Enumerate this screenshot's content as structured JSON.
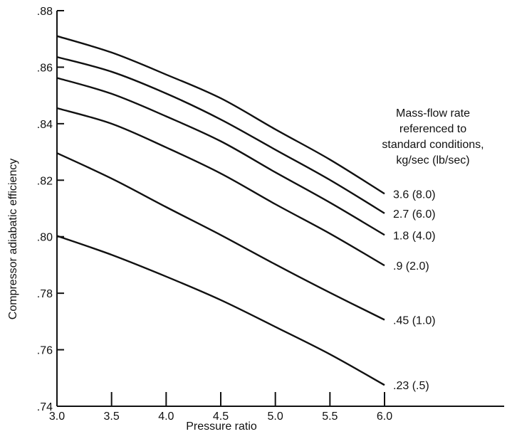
{
  "chart_data": {
    "type": "line",
    "title": "",
    "xlabel": "Pressure ratio",
    "ylabel": "Compressor adiabatic efficiency",
    "xlim": [
      3.0,
      6.0
    ],
    "ylim": [
      0.74,
      0.88
    ],
    "xticks": [
      {
        "value": 3.0,
        "label": "3.0"
      },
      {
        "value": 3.5,
        "label": "3.5"
      },
      {
        "value": 4.0,
        "label": "4.0"
      },
      {
        "value": 4.5,
        "label": "4.5"
      },
      {
        "value": 5.0,
        "label": "5.0"
      },
      {
        "value": 5.5,
        "label": "5.5"
      },
      {
        "value": 6.0,
        "label": "6.0"
      }
    ],
    "yticks": [
      {
        "value": 0.74,
        "label": ".74"
      },
      {
        "value": 0.76,
        "label": ".76"
      },
      {
        "value": 0.78,
        "label": ".78"
      },
      {
        "value": 0.8,
        "label": ".80"
      },
      {
        "value": 0.82,
        "label": ".82"
      },
      {
        "value": 0.84,
        "label": ".84"
      },
      {
        "value": 0.86,
        "label": ".86"
      },
      {
        "value": 0.88,
        "label": ".88"
      }
    ],
    "legend_title": [
      "Mass-flow rate",
      "referenced to",
      "standard conditions,",
      "kg/sec (lb/sec)"
    ],
    "grid": false,
    "series": [
      {
        "label": "3.6 (8.0)",
        "x": [
          3.0,
          3.5,
          4.0,
          4.5,
          5.0,
          5.5,
          6.0
        ],
        "y": [
          0.871,
          0.8652,
          0.8574,
          0.849,
          0.838,
          0.8273,
          0.8152
        ]
      },
      {
        "label": "2.7 (6.0)",
        "x": [
          3.0,
          3.5,
          4.0,
          4.5,
          5.0,
          5.5,
          6.0
        ],
        "y": [
          0.8636,
          0.8584,
          0.8507,
          0.8415,
          0.8308,
          0.8201,
          0.8083
        ]
      },
      {
        "label": "1.8 (4.0)",
        "x": [
          3.0,
          3.5,
          4.0,
          4.5,
          5.0,
          5.5,
          6.0
        ],
        "y": [
          0.8562,
          0.8506,
          0.8426,
          0.8338,
          0.8228,
          0.8121,
          0.8006
        ]
      },
      {
        "label": ".9 (2.0)",
        "x": [
          3.0,
          3.5,
          4.0,
          4.5,
          5.0,
          5.5,
          6.0
        ],
        "y": [
          0.8455,
          0.84,
          0.8316,
          0.8224,
          0.8115,
          0.8011,
          0.7898
        ]
      },
      {
        "label": ".45 (1.0)",
        "x": [
          3.0,
          3.5,
          4.0,
          4.5,
          5.0,
          5.5,
          6.0
        ],
        "y": [
          0.8296,
          0.8206,
          0.8105,
          0.8006,
          0.7902,
          0.7802,
          0.7706
        ]
      },
      {
        "label": ".23 (.5)",
        "x": [
          3.0,
          3.5,
          4.0,
          4.5,
          5.0,
          5.5,
          6.0
        ],
        "y": [
          0.8003,
          0.7936,
          0.7859,
          0.7776,
          0.7681,
          0.7584,
          0.7475
        ]
      }
    ]
  }
}
